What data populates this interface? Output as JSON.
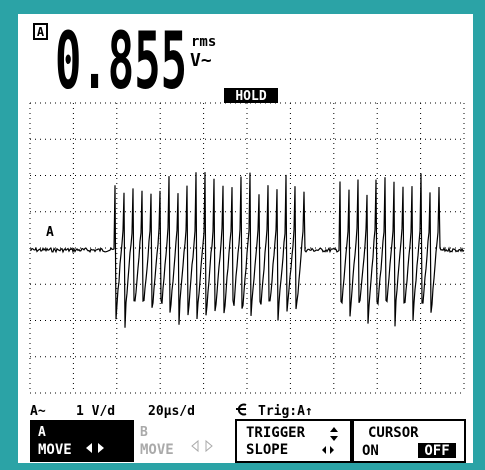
{
  "reading": {
    "channel": "A",
    "value": "0.855",
    "unit_top": "rms",
    "unit_bottom": "V~"
  },
  "hold": "HOLD",
  "trace_label": "A",
  "status": {
    "coupling": "A~",
    "volts_div": "1 V/d",
    "time_div": "20µs/d",
    "trigger": "Trig:A↑"
  },
  "softkeys": [
    {
      "line1": "A",
      "line2": "MOVE"
    },
    {
      "line1": "B",
      "line2": "MOVE"
    },
    {
      "line1": "TRIGGER",
      "line2": "SLOPE"
    },
    {
      "line1": "CURSOR",
      "line2": "ON",
      "line3": "OFF"
    }
  ]
}
